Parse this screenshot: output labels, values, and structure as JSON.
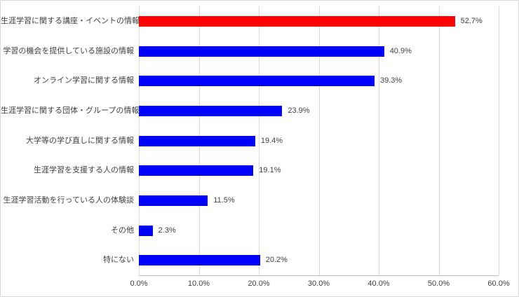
{
  "chart_data": {
    "type": "bar",
    "orientation": "horizontal",
    "title": "",
    "xlabel": "",
    "ylabel": "",
    "xlim": [
      0,
      60
    ],
    "grid": true,
    "categories": [
      "生涯学習に関する講座・イベントの情報",
      "学習の機会を提供している施設の情報",
      "オンライン学習に関する情報",
      "生涯学習に関する団体・グループの情報",
      "大学等の学び直しに関する情報",
      "生涯学習を支援する人の情報",
      "生涯学習活動を行っている人の体験談",
      "その他",
      "特にない"
    ],
    "values": [
      52.7,
      40.9,
      39.3,
      23.9,
      19.4,
      19.1,
      11.5,
      2.3,
      20.2
    ],
    "value_labels": [
      "52.7%",
      "40.9%",
      "39.3%",
      "23.9%",
      "19.4%",
      "19.1%",
      "11.5%",
      "2.3%",
      "20.2%"
    ],
    "bar_colors": [
      "#ff0000",
      "#0000ff",
      "#0000ff",
      "#0000ff",
      "#0000ff",
      "#0000ff",
      "#0000ff",
      "#0000ff",
      "#0000ff"
    ],
    "x_tick_values": [
      0,
      10,
      20,
      30,
      40,
      50,
      60
    ],
    "x_tick_labels": [
      "0.0%",
      "10.0%",
      "20.0%",
      "30.0%",
      "40.0%",
      "50.0%",
      "60.0%"
    ]
  },
  "colors": {
    "bar_highlight": "#ff0000",
    "bar_default": "#0000ff",
    "gridline": "#d9d9d9",
    "axis_line": "#bfbfbf",
    "text": "#404040",
    "background": "#ffffff",
    "frame_border": "#d9d9d9"
  }
}
